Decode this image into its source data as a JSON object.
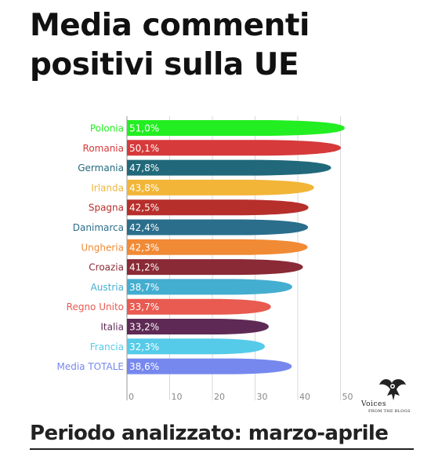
{
  "title": "Media commenti positivi sulla UE",
  "footer": "Periodo analizzato: marzo-aprile",
  "logo": {
    "name": "Voices",
    "subtitle": "FROM THE BLOGS"
  },
  "chart_data": {
    "type": "bar",
    "orientation": "horizontal",
    "categories": [
      "Polonia",
      "Romania",
      "Germania",
      "Irlanda",
      "Spagna",
      "Danimarca",
      "Ungheria",
      "Croazia",
      "Austria",
      "Regno Unito",
      "Italia",
      "Francia",
      "Media TOTALE"
    ],
    "values": [
      51.0,
      50.1,
      47.8,
      43.8,
      42.5,
      42.4,
      42.3,
      41.2,
      38.7,
      33.7,
      33.2,
      32.3,
      38.6
    ],
    "value_labels": [
      "51,0%",
      "50,1%",
      "47,8%",
      "43,8%",
      "42,5%",
      "42,4%",
      "42,3%",
      "41,2%",
      "38,7%",
      "33,7%",
      "33,2%",
      "32,3%",
      "38,6%"
    ],
    "colors": [
      "#22ee22",
      "#d63a3a",
      "#21697a",
      "#f2b537",
      "#b72f2b",
      "#2a6e8c",
      "#f18a35",
      "#8a2a36",
      "#44aed0",
      "#e95a50",
      "#5e2a55",
      "#55cbe9",
      "#7688ee"
    ],
    "xticks": [
      "0",
      "10",
      "20",
      "30",
      "40",
      "50"
    ],
    "xlim": [
      0,
      50
    ],
    "grid": true
  }
}
